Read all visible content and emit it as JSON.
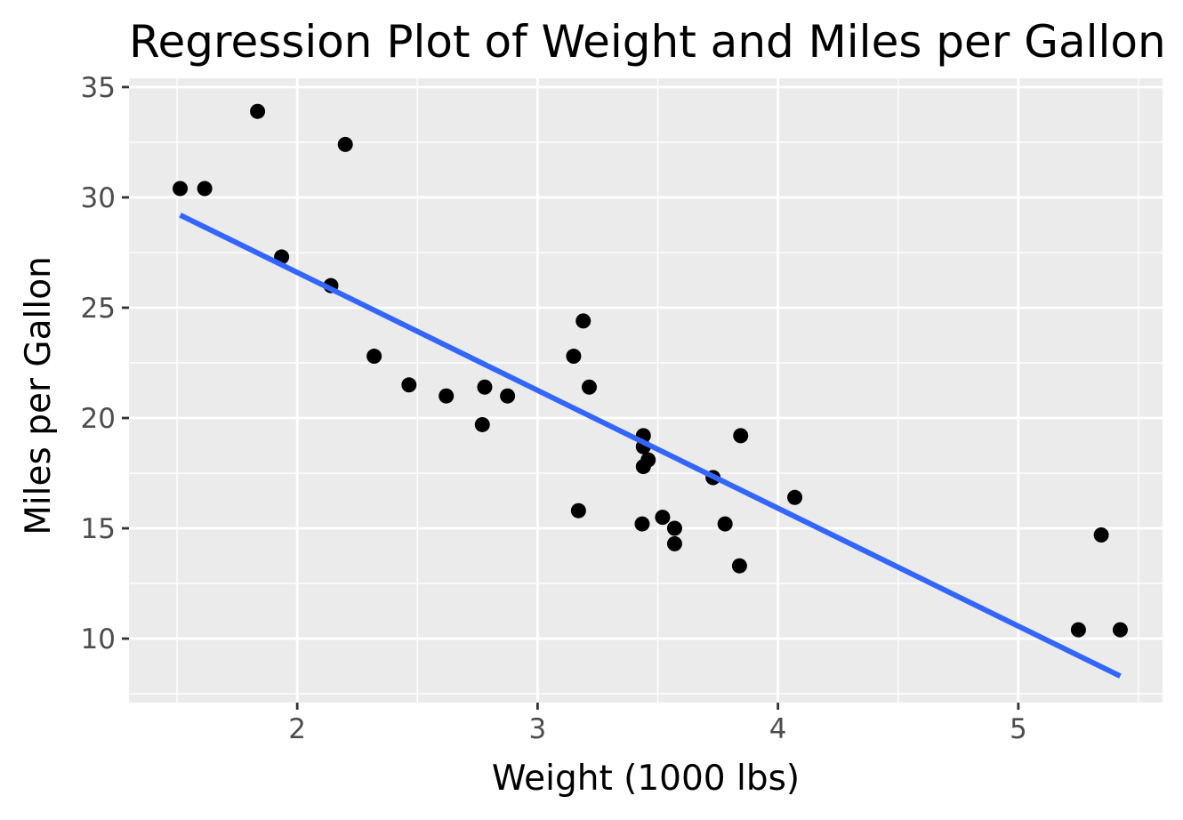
{
  "chart_data": {
    "type": "scatter",
    "title": "Regression Plot of Weight and Miles per Gallon",
    "xlabel": "Weight (1000 lbs)",
    "ylabel": "Miles per Gallon",
    "xlim": [
      1.3,
      5.6
    ],
    "ylim": [
      7.1,
      35.4
    ],
    "x_ticks": [
      2,
      3,
      4,
      5
    ],
    "x_tick_labels": [
      "2",
      "3",
      "4",
      "5"
    ],
    "y_ticks": [
      10,
      15,
      20,
      25,
      30,
      35
    ],
    "y_tick_labels": [
      "10",
      "15",
      "20",
      "25",
      "30",
      "35"
    ],
    "x_minor_ticks": [
      1.5,
      2.5,
      3.5,
      4.5,
      5.5
    ],
    "y_minor_ticks": [
      7.5,
      12.5,
      17.5,
      22.5,
      27.5,
      32.5
    ],
    "grid": true,
    "points": [
      {
        "x": 2.62,
        "y": 21.0
      },
      {
        "x": 2.875,
        "y": 21.0
      },
      {
        "x": 2.32,
        "y": 22.8
      },
      {
        "x": 3.215,
        "y": 21.4
      },
      {
        "x": 3.44,
        "y": 18.7
      },
      {
        "x": 3.46,
        "y": 18.1
      },
      {
        "x": 3.57,
        "y": 14.3
      },
      {
        "x": 3.19,
        "y": 24.4
      },
      {
        "x": 3.15,
        "y": 22.8
      },
      {
        "x": 3.44,
        "y": 19.2
      },
      {
        "x": 3.44,
        "y": 17.8
      },
      {
        "x": 4.07,
        "y": 16.4
      },
      {
        "x": 3.73,
        "y": 17.3
      },
      {
        "x": 3.78,
        "y": 15.2
      },
      {
        "x": 5.25,
        "y": 10.4
      },
      {
        "x": 5.424,
        "y": 10.4
      },
      {
        "x": 5.345,
        "y": 14.7
      },
      {
        "x": 2.2,
        "y": 32.4
      },
      {
        "x": 1.615,
        "y": 30.4
      },
      {
        "x": 1.835,
        "y": 33.9
      },
      {
        "x": 2.465,
        "y": 21.5
      },
      {
        "x": 3.52,
        "y": 15.5
      },
      {
        "x": 3.435,
        "y": 15.2
      },
      {
        "x": 3.84,
        "y": 13.3
      },
      {
        "x": 3.845,
        "y": 19.2
      },
      {
        "x": 1.935,
        "y": 27.3
      },
      {
        "x": 2.14,
        "y": 26.0
      },
      {
        "x": 1.513,
        "y": 30.4
      },
      {
        "x": 3.17,
        "y": 15.8
      },
      {
        "x": 2.77,
        "y": 19.7
      },
      {
        "x": 3.57,
        "y": 15.0
      },
      {
        "x": 2.78,
        "y": 21.4
      }
    ],
    "regression_line": {
      "x": [
        1.513,
        5.424
      ],
      "y": [
        29.2,
        8.3
      ],
      "color": "#3366ff"
    },
    "point_color": "#000000",
    "panel_background": "#ebebeb",
    "grid_color": "#ffffff"
  }
}
